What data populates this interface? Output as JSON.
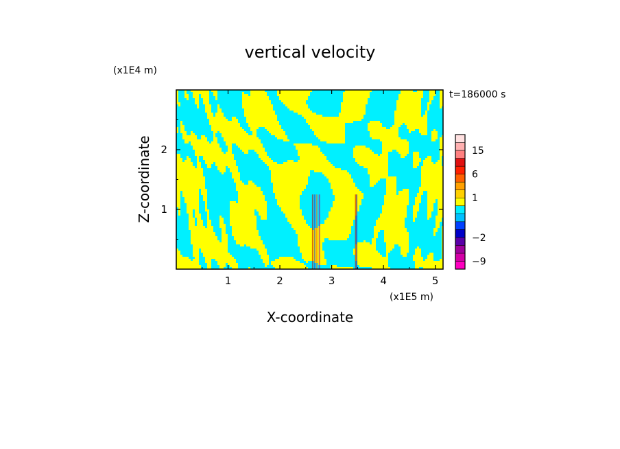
{
  "chart_data": {
    "type": "heatmap",
    "title": "vertical velocity",
    "xlabel": "X-coordinate",
    "ylabel": "Z-coordinate",
    "x_unit": "(x1E5 m)",
    "y_unit": "(x1E4 m)",
    "x_ticks": [
      "1",
      "2",
      "3",
      "4",
      "5"
    ],
    "x_tick_values": [
      1,
      2,
      3,
      4,
      5
    ],
    "y_ticks": [
      "1",
      "2"
    ],
    "y_tick_values": [
      1,
      2
    ],
    "xlim": [
      0,
      5.15
    ],
    "ylim": [
      0,
      3.0
    ],
    "time_label": "t=186000 s",
    "colorbar": {
      "levels": [
        -12,
        -9,
        -6,
        -4,
        -2,
        -1,
        -0.5,
        0,
        0.5,
        1,
        2,
        4,
        6,
        9,
        12,
        15,
        18,
        21
      ],
      "colors": [
        "#ff00c0",
        "#d400a6",
        "#a0009c",
        "#5a00a8",
        "#0000c8",
        "#0040ff",
        "#00c0ff",
        "#00f0ff",
        "#ffff00",
        "#ffd000",
        "#ffa000",
        "#ff6000",
        "#ff2000",
        "#e01010",
        "#ff8080",
        "#ffb0b0",
        "#ffe0e0"
      ],
      "tick_labels": [
        "15",
        "6",
        "1",
        "−2",
        "−9"
      ],
      "tick_values": [
        15,
        6,
        1,
        -2,
        -9
      ]
    },
    "dominant_colors": {
      "positive": "#ffff00",
      "negative": "#00f0ff"
    }
  }
}
